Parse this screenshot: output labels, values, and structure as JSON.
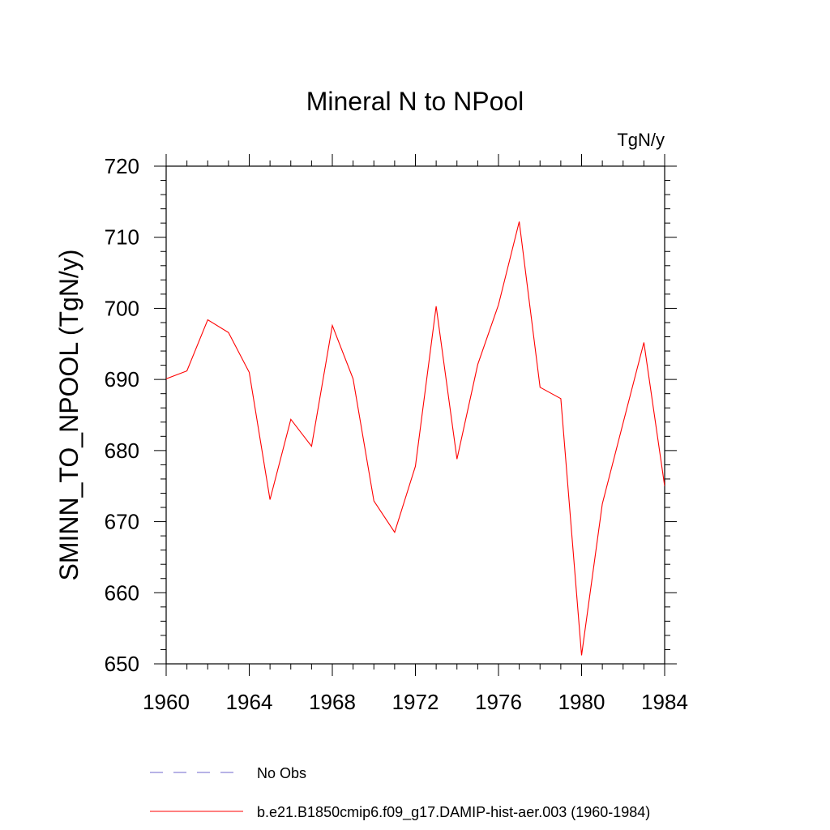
{
  "chart_data": {
    "type": "line",
    "title": "Mineral N to NPool",
    "units_label": "TgN/y",
    "xlabel": "",
    "ylabel": "SMINN_TO_NPOOL  (TgN/y)",
    "xlim": [
      1960,
      1984
    ],
    "ylim": [
      650,
      720
    ],
    "x_ticks": [
      1960,
      1964,
      1968,
      1972,
      1976,
      1980,
      1984
    ],
    "y_ticks": [
      650,
      660,
      670,
      680,
      690,
      700,
      710,
      720
    ],
    "grid": false,
    "legend_position": "bottom",
    "series": [
      {
        "name": "No Obs",
        "color": "#6f66cc",
        "dash": true,
        "x": [],
        "y": []
      },
      {
        "name": "b.e21.B1850cmip6.f09_g17.DAMIP-hist-aer.003 (1960-1984)",
        "color": "#ff0000",
        "dash": false,
        "x": [
          1960,
          1961,
          1962,
          1963,
          1964,
          1965,
          1966,
          1967,
          1968,
          1969,
          1970,
          1971,
          1972,
          1973,
          1974,
          1975,
          1976,
          1977,
          1978,
          1979,
          1980,
          1981,
          1982,
          1983,
          1984
        ],
        "y": [
          690.1,
          691.2,
          698.4,
          696.6,
          691.0,
          673.1,
          684.4,
          680.6,
          697.6,
          690.1,
          672.9,
          668.5,
          677.8,
          700.3,
          678.8,
          692.1,
          700.5,
          712.2,
          688.9,
          687.3,
          651.2,
          672.5,
          683.9,
          695.2,
          675.0
        ]
      }
    ]
  }
}
